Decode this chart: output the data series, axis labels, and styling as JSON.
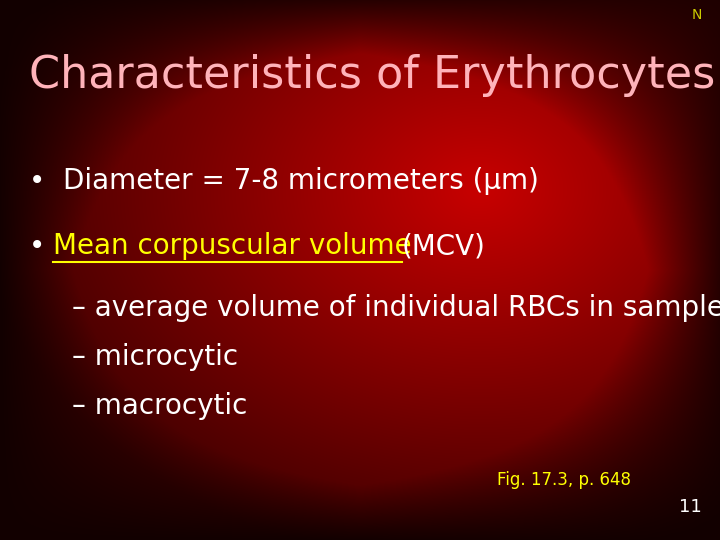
{
  "title": "Characteristics of Erythrocytes",
  "title_color": "#FFB3BA",
  "title_fontsize": 32,
  "slide_number": "11",
  "slide_number_color": "#FFFFFF",
  "N_label": "N",
  "N_label_color": "#CCCC00",
  "bullet1": "Diameter = 7-8 micrometers (μm)",
  "bullet2_underlined": "Mean corpuscular volume ",
  "bullet2_rest": "(MCV)",
  "bullet2_underline_color": "#FFFF00",
  "sub1": "– average volume of individual RBCs in sample",
  "sub2": "– microcytic",
  "sub3": "– macrocytic",
  "bullet_color": "#FFFFFF",
  "sub_color": "#FFFFFF",
  "fig_label": "Fig. 17.3, p. 648",
  "fig_label_color": "#FFFF00",
  "font_size_bullet": 20,
  "font_size_sub": 20,
  "font_size_fig": 12,
  "font_size_N": 10,
  "font_size_slide_num": 13
}
